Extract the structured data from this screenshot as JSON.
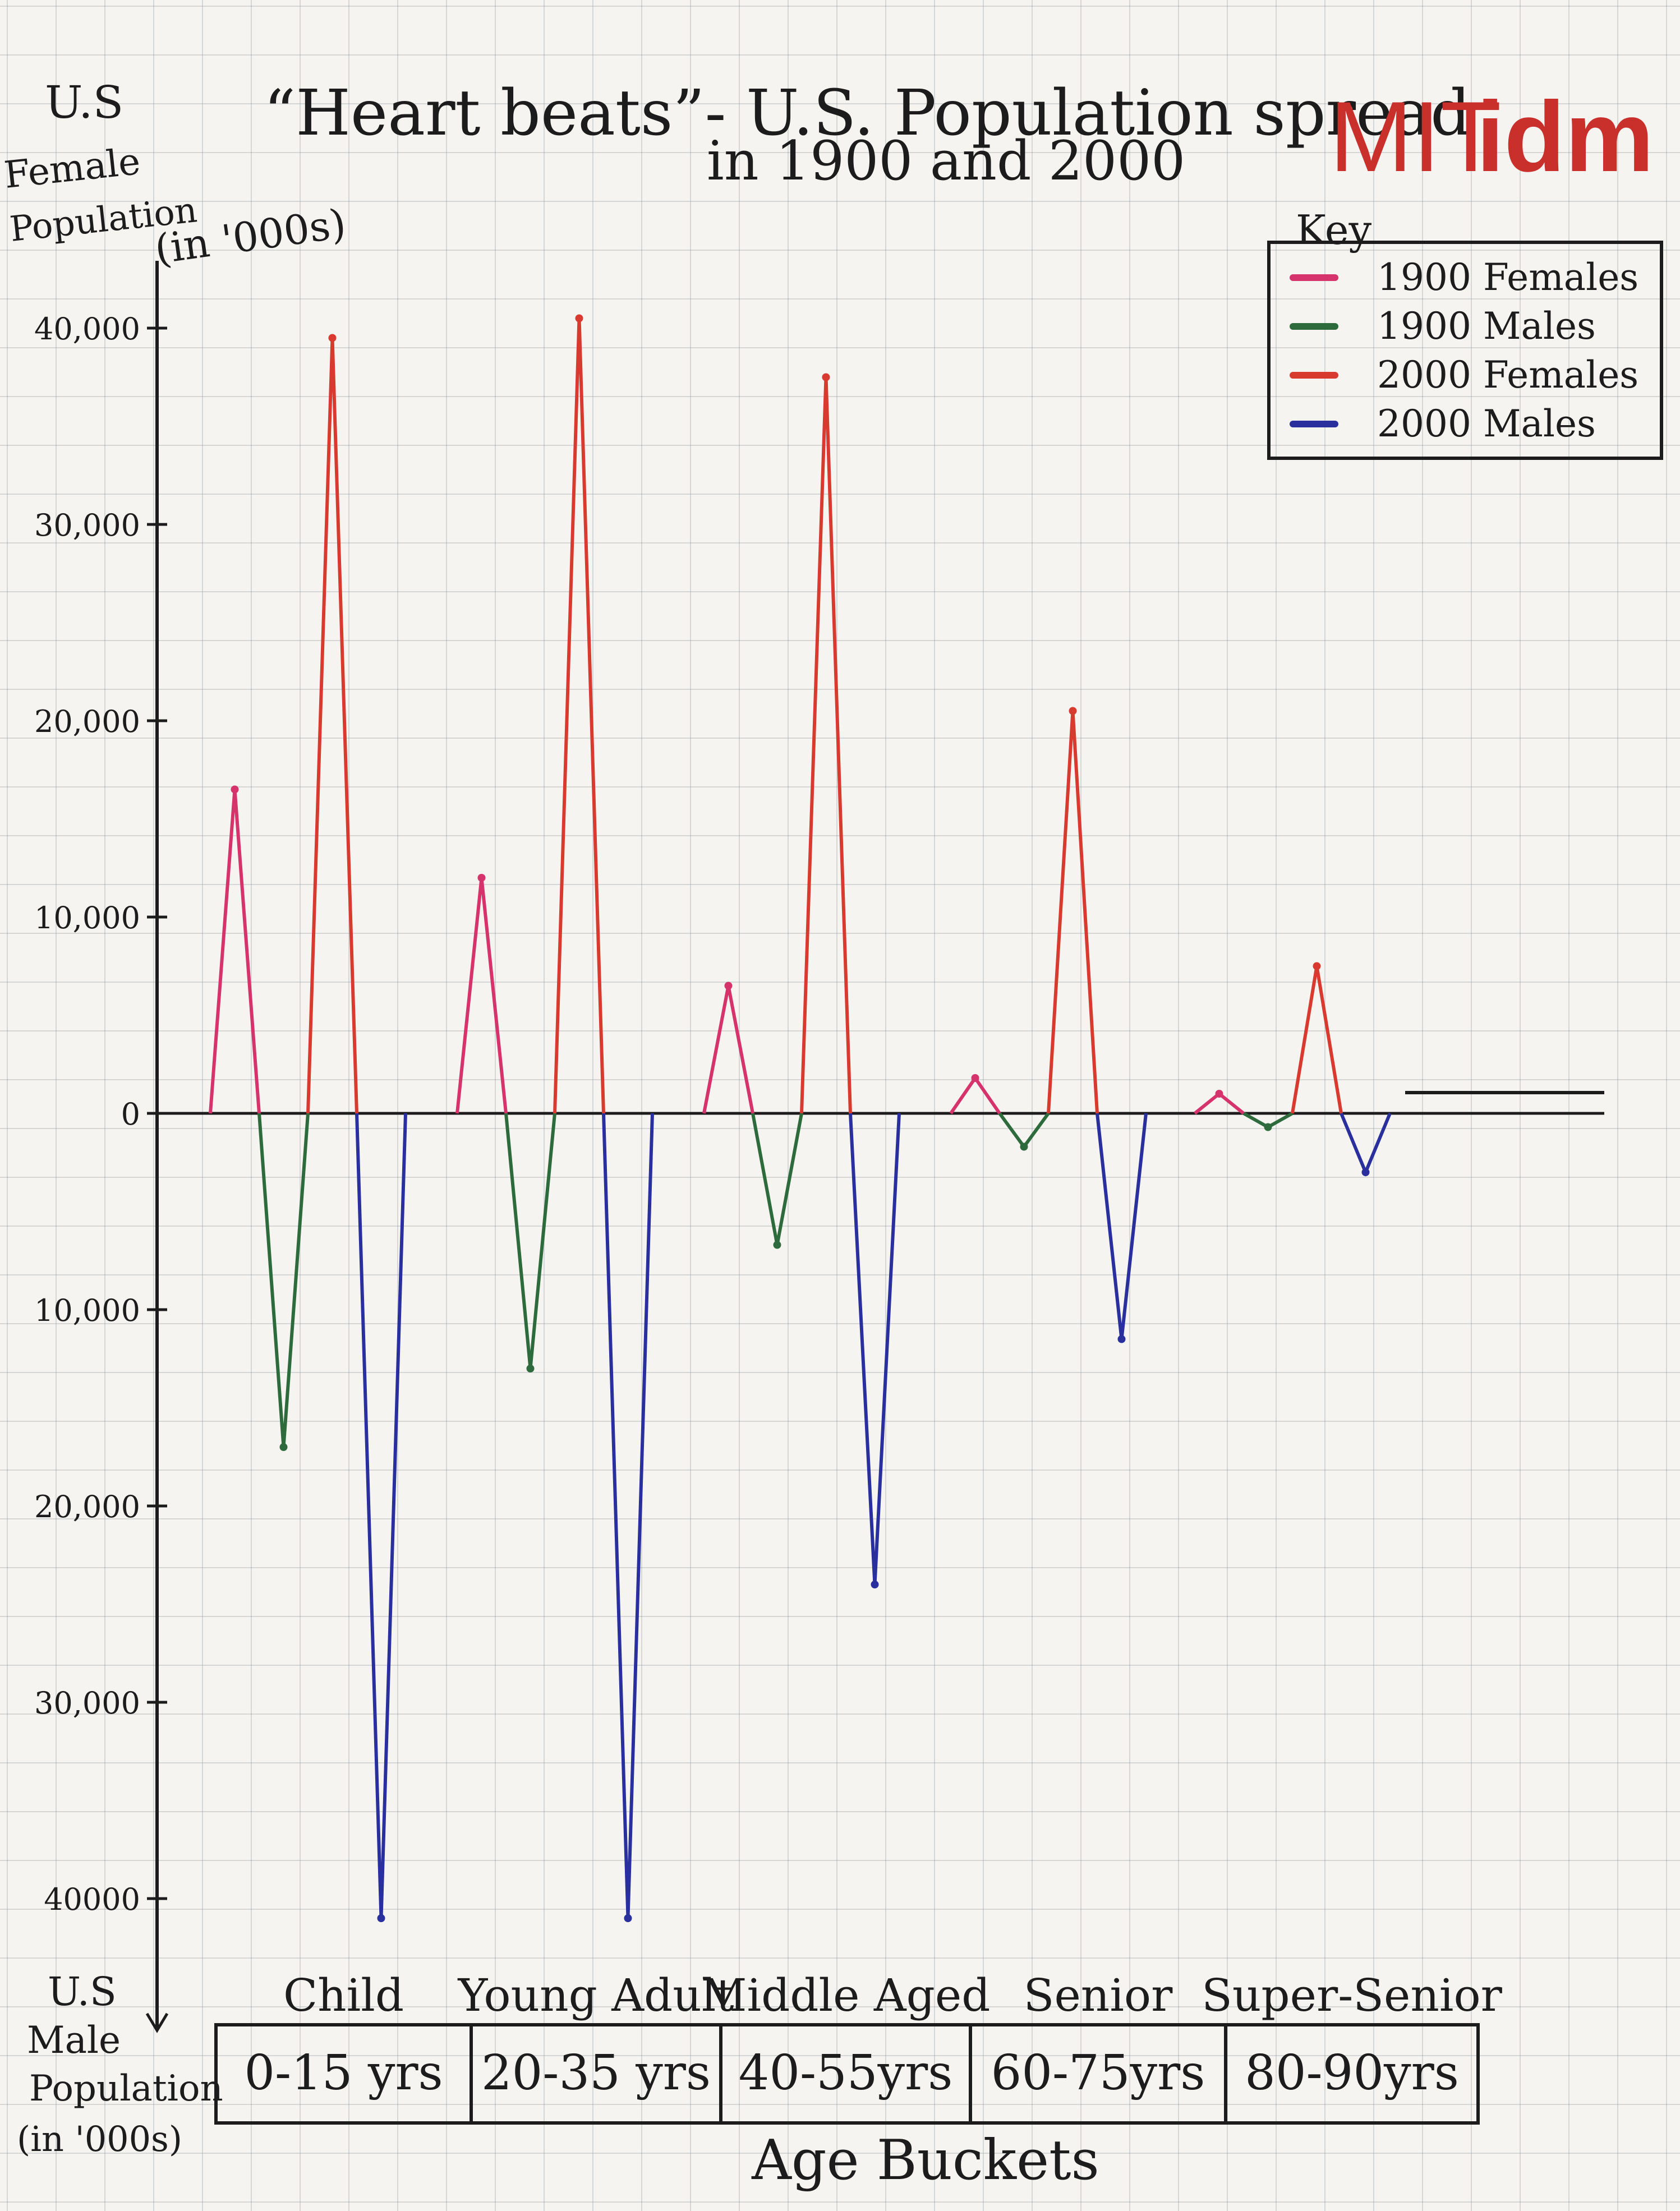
{
  "title_line1": "“Heart beats”- U.S. Population spread",
  "title_line2": "in 1900 and 2000",
  "logo": {
    "mit": "MIT",
    "idm": "idm"
  },
  "y_axis_top_label": [
    "U.S",
    "Female",
    "Population",
    "(in '000s)"
  ],
  "y_axis_bottom_label": [
    "U.S",
    "Male",
    "Population",
    "(in '000s)"
  ],
  "key": {
    "title": "Key"
  },
  "chart_data": {
    "type": "line",
    "title": "“Heart beats”- U.S. Population spread in 1900 and 2000",
    "xlabel": "Age Buckets",
    "ylabel_top": "U.S Female Population (in '000s)",
    "ylabel_bottom": "U.S Male Population (in '000s)",
    "ylim": [
      -40000,
      40000
    ],
    "y_ticks": [
      {
        "value": 40000,
        "label": "40,000"
      },
      {
        "value": 30000,
        "label": "30,000"
      },
      {
        "value": 20000,
        "label": "20,000"
      },
      {
        "value": 10000,
        "label": "10,000"
      },
      {
        "value": 0,
        "label": "0"
      },
      {
        "value": -10000,
        "label": "10,000"
      },
      {
        "value": -20000,
        "label": "20,000"
      },
      {
        "value": -30000,
        "label": "30,000"
      },
      {
        "value": -40000,
        "label": "40000"
      }
    ],
    "categories": [
      {
        "name": "Child",
        "range": "0-15 yrs"
      },
      {
        "name": "Young Adult",
        "range": "20-35 yrs"
      },
      {
        "name": "Middle Aged",
        "range": "40-55yrs"
      },
      {
        "name": "Senior",
        "range": "60-75yrs"
      },
      {
        "name": "Super-Senior",
        "range": "80-90yrs"
      }
    ],
    "series": [
      {
        "name": "1900 Females",
        "color": "#d6336c",
        "values": [
          16500,
          12000,
          6500,
          1800,
          1000
        ]
      },
      {
        "name": "1900 Males",
        "color": "#2e6b3c",
        "values": [
          -17000,
          -13000,
          -6700,
          -1700,
          -700
        ]
      },
      {
        "name": "2000 Females",
        "color": "#d93a2f",
        "values": [
          39500,
          40500,
          37500,
          20500,
          7500
        ]
      },
      {
        "name": "2000 Males",
        "color": "#2a2f9e",
        "values": [
          -41000,
          -41000,
          -24000,
          -11500,
          -3000
        ]
      }
    ],
    "grid": true,
    "legend": "top-right"
  }
}
